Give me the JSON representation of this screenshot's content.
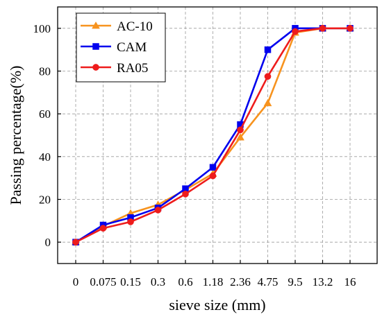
{
  "chart_data": {
    "type": "line",
    "title": "",
    "xlabel": "sieve size (mm)",
    "ylabel": "Passing percentage(%)",
    "categories": [
      "0",
      "0.075",
      "0.15",
      "0.3",
      "0.6",
      "1.18",
      "2.36",
      "4.75",
      "9.5",
      "13.2",
      "16"
    ],
    "ylim": [
      -10,
      110
    ],
    "yticks": [
      0,
      20,
      40,
      60,
      80,
      100
    ],
    "grid": true,
    "legend_position": "top-left",
    "series": [
      {
        "name": "AC-10",
        "color": "#f7931e",
        "marker": "triangle",
        "values": [
          0,
          7.5,
          13.5,
          17.5,
          24.5,
          32,
          49,
          65,
          98,
          100,
          100
        ]
      },
      {
        "name": "CAM",
        "color": "#0000ee",
        "marker": "square",
        "values": [
          0,
          8,
          11.5,
          16,
          25,
          35,
          55,
          90,
          100,
          100,
          100
        ]
      },
      {
        "name": "RA05",
        "color": "#ee1c1c",
        "marker": "circle",
        "values": [
          0,
          6.5,
          9.5,
          15,
          22.5,
          31,
          52.5,
          77.5,
          98.5,
          100,
          100
        ]
      }
    ]
  }
}
